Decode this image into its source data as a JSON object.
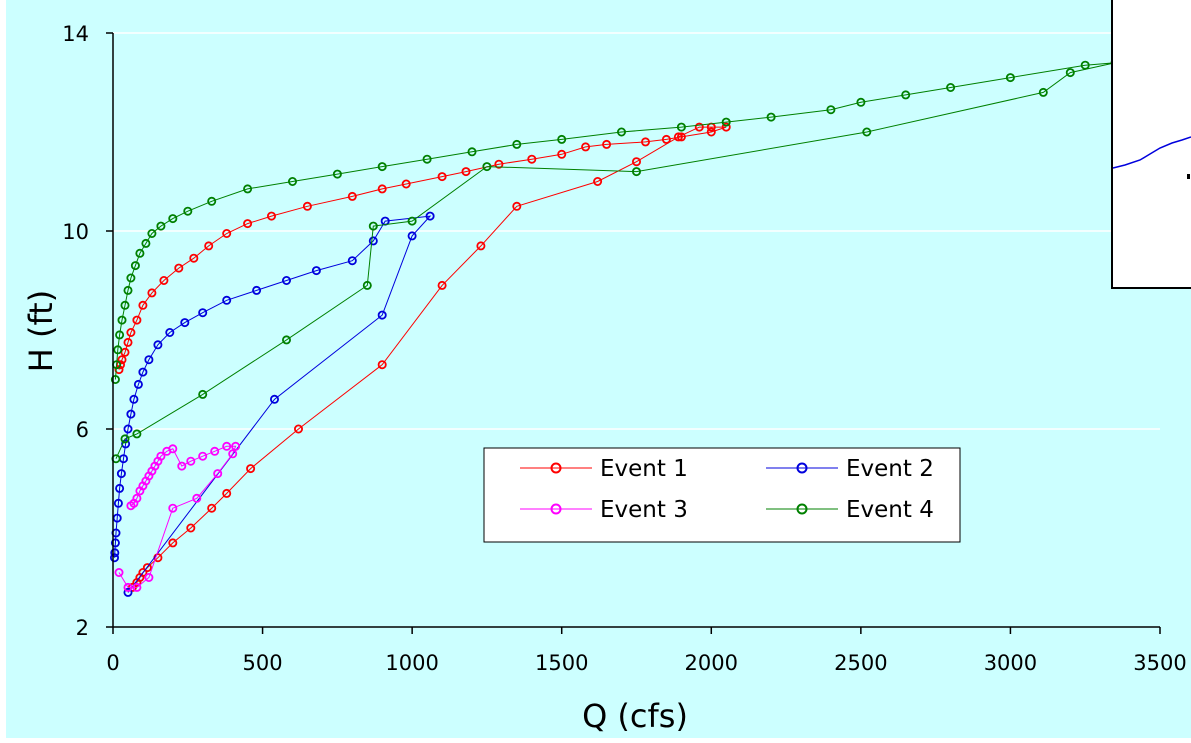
{
  "colors": {
    "background": "#ccffff",
    "axis": "#000000",
    "grid": "#ffffff",
    "event_1": "#ff0000",
    "event_2": "#0000dd",
    "event_3": "#ff00ff",
    "event_4": "#008000"
  },
  "chart_data": {
    "type": "scatter",
    "title": "",
    "xlabel": "Q (cfs)",
    "ylabel": "H (ft)",
    "xlim": [
      0,
      3500
    ],
    "ylim": [
      2,
      14
    ],
    "x_ticks": [
      "0",
      "500",
      "1000",
      "1500",
      "2000",
      "2500",
      "3000",
      "3500"
    ],
    "y_ticks": [
      "2",
      "6",
      "10",
      "14"
    ],
    "grid": "horizontal",
    "legend_position": "lower-center",
    "series": [
      {
        "name": "Event 1",
        "color": "#ff0000",
        "x": [
          65,
          80,
          90,
          100,
          115,
          150,
          200,
          260,
          330,
          380,
          460,
          620,
          900,
          1100,
          1230,
          1350,
          1620,
          1750,
          1890,
          1960,
          2000,
          2050,
          2000,
          1900,
          1850,
          1780,
          1650,
          1580,
          1500,
          1400,
          1290,
          1180,
          1100,
          980,
          900,
          800,
          650,
          530,
          450,
          380,
          320,
          270,
          220,
          170,
          130,
          100,
          80,
          60,
          50,
          40,
          30,
          25,
          20
        ],
        "y": [
          2.8,
          2.9,
          3.0,
          3.1,
          3.2,
          3.4,
          3.7,
          4.0,
          4.4,
          4.7,
          5.2,
          6.0,
          7.3,
          8.9,
          9.7,
          10.5,
          11.0,
          11.4,
          11.9,
          12.1,
          12.1,
          12.1,
          12.0,
          11.9,
          11.85,
          11.8,
          11.75,
          11.7,
          11.55,
          11.45,
          11.35,
          11.2,
          11.1,
          10.95,
          10.85,
          10.7,
          10.5,
          10.3,
          10.15,
          9.95,
          9.7,
          9.45,
          9.25,
          9.0,
          8.75,
          8.5,
          8.2,
          7.95,
          7.75,
          7.55,
          7.4,
          7.3,
          7.2
        ]
      },
      {
        "name": "Event 2",
        "color": "#0000dd",
        "x": [
          50,
          540,
          900,
          1000,
          1060,
          910,
          870,
          800,
          680,
          580,
          480,
          380,
          300,
          240,
          190,
          150,
          120,
          100,
          85,
          70,
          60,
          50,
          42,
          35,
          28,
          22,
          18,
          14,
          10,
          8,
          6,
          5
        ],
        "y": [
          2.7,
          6.6,
          8.3,
          9.9,
          10.3,
          10.2,
          9.8,
          9.4,
          9.2,
          9.0,
          8.8,
          8.6,
          8.35,
          8.15,
          7.95,
          7.7,
          7.4,
          7.15,
          6.9,
          6.6,
          6.3,
          6.0,
          5.7,
          5.4,
          5.1,
          4.8,
          4.5,
          4.2,
          3.9,
          3.7,
          3.5,
          3.4
        ]
      },
      {
        "name": "Event 3",
        "color": "#ff00ff",
        "x": [
          20,
          50,
          80,
          120,
          200,
          280,
          350,
          400,
          410,
          380,
          340,
          300,
          260,
          230,
          200,
          180,
          160,
          150,
          140,
          130,
          120,
          110,
          100,
          90,
          80,
          70,
          60
        ],
        "y": [
          3.1,
          2.8,
          2.8,
          3.0,
          4.4,
          4.6,
          5.1,
          5.5,
          5.65,
          5.65,
          5.55,
          5.45,
          5.35,
          5.25,
          5.6,
          5.55,
          5.45,
          5.35,
          5.25,
          5.15,
          5.05,
          4.95,
          4.85,
          4.75,
          4.6,
          4.5,
          4.45
        ]
      },
      {
        "name": "Event 4",
        "color": "#008000",
        "x": [
          10,
          40,
          80,
          300,
          580,
          850,
          870,
          1000,
          1250,
          1750,
          2520,
          3110,
          3200,
          3350,
          3250,
          3000,
          2800,
          2650,
          2500,
          2400,
          2200,
          2050,
          1900,
          1700,
          1500,
          1350,
          1200,
          1050,
          900,
          750,
          600,
          450,
          330,
          250,
          200,
          160,
          130,
          110,
          90,
          75,
          60,
          50,
          40,
          30,
          22,
          16,
          12,
          8
        ],
        "y": [
          5.4,
          5.8,
          5.9,
          6.7,
          7.8,
          8.9,
          10.1,
          10.2,
          11.3,
          11.2,
          12.0,
          12.8,
          13.2,
          13.4,
          13.35,
          13.1,
          12.9,
          12.75,
          12.6,
          12.45,
          12.3,
          12.2,
          12.1,
          12.0,
          11.85,
          11.75,
          11.6,
          11.45,
          11.3,
          11.15,
          11.0,
          10.85,
          10.6,
          10.4,
          10.25,
          10.1,
          9.95,
          9.75,
          9.55,
          9.3,
          9.05,
          8.8,
          8.5,
          8.2,
          7.9,
          7.6,
          7.3,
          7.0
        ]
      }
    ]
  },
  "legend": {
    "items": [
      "Event 1",
      "Event 2",
      "Event 3",
      "Event 4"
    ]
  }
}
